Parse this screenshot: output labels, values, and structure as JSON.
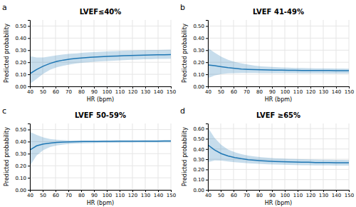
{
  "chart_data": [
    {
      "type": "line",
      "title": "LVEF≤40%",
      "panel_label": "a",
      "xlabel": "HR (bpm)",
      "ylabel": "Predicted probability",
      "x": [
        40,
        45.238095238095,
        50.47619047619,
        55.714285714286,
        60.952380952381,
        66.190476190476,
        71.428571428571,
        76.666666666667,
        81.904761904762,
        87.142857142857,
        92.380952380952,
        97.619047619048,
        102.857142857143,
        108.095238095238,
        113.333333333333,
        118.571428571429,
        123.809523809524,
        129.047619047619,
        134.285714285714,
        139.52380952381,
        144.761904761905,
        150
      ],
      "values": [
        0.105,
        0.14,
        0.168,
        0.19,
        0.207,
        0.218,
        0.226,
        0.232,
        0.237,
        0.241,
        0.244,
        0.247,
        0.25,
        0.252,
        0.254,
        0.256,
        0.257,
        0.259,
        0.26,
        0.261,
        0.262,
        0.263
      ],
      "lower": [
        0.02,
        0.062,
        0.105,
        0.138,
        0.158,
        0.172,
        0.182,
        0.19,
        0.196,
        0.201,
        0.205,
        0.209,
        0.212,
        0.215,
        0.218,
        0.22,
        0.222,
        0.224,
        0.225,
        0.227,
        0.228,
        0.229
      ],
      "upper": [
        0.25,
        0.24,
        0.24,
        0.248,
        0.258,
        0.265,
        0.27,
        0.274,
        0.279,
        0.283,
        0.286,
        0.289,
        0.291,
        0.293,
        0.295,
        0.297,
        0.298,
        0.3,
        0.301,
        0.302,
        0.303,
        0.304
      ],
      "xlim": [
        40,
        150
      ],
      "ylim": [
        0.0,
        0.55
      ],
      "xticks": [
        40,
        50,
        60,
        70,
        80,
        90,
        100,
        110,
        120,
        130,
        140,
        150
      ],
      "yticks": [
        {
          "value": 0.0,
          "label": "0.00"
        },
        {
          "value": 0.1,
          "label": "0.10"
        },
        {
          "value": 0.2,
          "label": "0.20"
        },
        {
          "value": 0.3,
          "label": "0.30"
        },
        {
          "value": 0.4,
          "label": "0.40"
        },
        {
          "value": 0.5,
          "label": "0.50"
        }
      ],
      "grid": true
    },
    {
      "type": "line",
      "title": "LVEF 41-49%",
      "panel_label": "b",
      "xlabel": "HR (bpm)",
      "ylabel": "Predicted probability",
      "x": [
        40,
        45.238095238095,
        50.47619047619,
        55.714285714286,
        60.952380952381,
        66.190476190476,
        71.428571428571,
        76.666666666667,
        81.904761904762,
        87.142857142857,
        92.380952380952,
        97.619047619048,
        102.857142857143,
        108.095238095238,
        113.333333333333,
        118.571428571429,
        123.809523809524,
        129.047619047619,
        134.285714285714,
        139.52380952381,
        144.761904761905,
        150
      ],
      "values": [
        0.178,
        0.172,
        0.163,
        0.155,
        0.149,
        0.144,
        0.141,
        0.139,
        0.137,
        0.136,
        0.135,
        0.134,
        0.133,
        0.133,
        0.132,
        0.132,
        0.131,
        0.131,
        0.131,
        0.13,
        0.13,
        0.13
      ],
      "lower": [
        0.068,
        0.09,
        0.102,
        0.108,
        0.11,
        0.111,
        0.111,
        0.111,
        0.11,
        0.11,
        0.11,
        0.109,
        0.109,
        0.109,
        0.108,
        0.108,
        0.108,
        0.108,
        0.107,
        0.107,
        0.107,
        0.107
      ],
      "upper": [
        0.318,
        0.28,
        0.245,
        0.22,
        0.203,
        0.19,
        0.18,
        0.172,
        0.166,
        0.162,
        0.159,
        0.157,
        0.155,
        0.153,
        0.152,
        0.151,
        0.15,
        0.149,
        0.149,
        0.148,
        0.148,
        0.147
      ],
      "xlim": [
        40,
        150
      ],
      "ylim": [
        0.0,
        0.55
      ],
      "xticks": [
        40,
        50,
        60,
        70,
        80,
        90,
        100,
        110,
        120,
        130,
        140,
        150
      ],
      "yticks": [
        {
          "value": 0.0,
          "label": "0.00"
        },
        {
          "value": 0.1,
          "label": "0.10"
        },
        {
          "value": 0.2,
          "label": "0.20"
        },
        {
          "value": 0.3,
          "label": "0.30"
        },
        {
          "value": 0.4,
          "label": "0.40"
        },
        {
          "value": 0.5,
          "label": "0.50"
        }
      ],
      "grid": true
    },
    {
      "type": "line",
      "title": "LVEF 50-59%",
      "panel_label": "c",
      "xlabel": "HR (bpm)",
      "ylabel": "Predicted probability",
      "x": [
        40,
        45.238095238095,
        50.47619047619,
        55.714285714286,
        60.952380952381,
        66.190476190476,
        71.428571428571,
        76.666666666667,
        81.904761904762,
        87.142857142857,
        92.380952380952,
        97.619047619048,
        102.857142857143,
        108.095238095238,
        113.333333333333,
        118.571428571429,
        123.809523809524,
        129.047619047619,
        134.285714285714,
        139.52380952381,
        144.761904761905,
        150
      ],
      "values": [
        0.33,
        0.365,
        0.38,
        0.388,
        0.393,
        0.396,
        0.398,
        0.399,
        0.4,
        0.401,
        0.401,
        0.402,
        0.402,
        0.403,
        0.403,
        0.403,
        0.404,
        0.404,
        0.404,
        0.404,
        0.405,
        0.405
      ],
      "lower": [
        0.2,
        0.285,
        0.33,
        0.355,
        0.368,
        0.376,
        0.381,
        0.384,
        0.386,
        0.388,
        0.389,
        0.39,
        0.391,
        0.391,
        0.392,
        0.392,
        0.393,
        0.393,
        0.393,
        0.394,
        0.394,
        0.394
      ],
      "upper": [
        0.48,
        0.455,
        0.435,
        0.422,
        0.415,
        0.412,
        0.41,
        0.41,
        0.41,
        0.41,
        0.41,
        0.41,
        0.41,
        0.41,
        0.41,
        0.41,
        0.41,
        0.411,
        0.411,
        0.411,
        0.411,
        0.411
      ],
      "xlim": [
        40,
        150
      ],
      "ylim": [
        0.0,
        0.55
      ],
      "xticks": [
        40,
        50,
        60,
        70,
        80,
        90,
        100,
        110,
        120,
        130,
        140,
        150
      ],
      "yticks": [
        {
          "value": 0.0,
          "label": "0.00"
        },
        {
          "value": 0.1,
          "label": "0.10"
        },
        {
          "value": 0.2,
          "label": "0.20"
        },
        {
          "value": 0.3,
          "label": "0.30"
        },
        {
          "value": 0.4,
          "label": "0.40"
        },
        {
          "value": 0.5,
          "label": "0.50"
        }
      ],
      "grid": true
    },
    {
      "type": "line",
      "title": "LVEF ≥65%",
      "panel_label": "d",
      "xlabel": "HR (bpm)",
      "ylabel": "Predicted probability",
      "x": [
        40,
        45.238095238095,
        50.47619047619,
        55.714285714286,
        60.952380952381,
        66.190476190476,
        71.428571428571,
        76.666666666667,
        81.904761904762,
        87.142857142857,
        92.380952380952,
        97.619047619048,
        102.857142857143,
        108.095238095238,
        113.333333333333,
        118.571428571429,
        123.809523809524,
        129.047619047619,
        134.285714285714,
        139.52380952381,
        144.761904761905,
        150
      ],
      "values": [
        0.44,
        0.39,
        0.355,
        0.332,
        0.316,
        0.305,
        0.296,
        0.29,
        0.285,
        0.281,
        0.278,
        0.276,
        0.274,
        0.272,
        0.271,
        0.27,
        0.268,
        0.268,
        0.267,
        0.266,
        0.265,
        0.265
      ],
      "lower": [
        0.27,
        0.288,
        0.286,
        0.278,
        0.271,
        0.265,
        0.26,
        0.256,
        0.253,
        0.25,
        0.248,
        0.246,
        0.245,
        0.243,
        0.242,
        0.241,
        0.24,
        0.239,
        0.239,
        0.238,
        0.237,
        0.237
      ],
      "upper": [
        0.61,
        0.508,
        0.44,
        0.395,
        0.368,
        0.35,
        0.336,
        0.326,
        0.319,
        0.314,
        0.31,
        0.307,
        0.304,
        0.302,
        0.3,
        0.298,
        0.297,
        0.296,
        0.295,
        0.294,
        0.293,
        0.292
      ],
      "xlim": [
        40,
        150
      ],
      "ylim": [
        0.0,
        0.65
      ],
      "xticks": [
        40,
        50,
        60,
        70,
        80,
        90,
        100,
        110,
        120,
        130,
        140,
        150
      ],
      "yticks": [
        {
          "value": 0.0,
          "label": "0.00"
        },
        {
          "value": 0.1,
          "label": "0.10"
        },
        {
          "value": 0.2,
          "label": "0.20"
        },
        {
          "value": 0.3,
          "label": "0.30"
        },
        {
          "value": 0.4,
          "label": "0.40"
        },
        {
          "value": 0.5,
          "label": "0.50"
        },
        {
          "value": 0.6,
          "label": "0.60"
        }
      ],
      "grid": true
    }
  ]
}
